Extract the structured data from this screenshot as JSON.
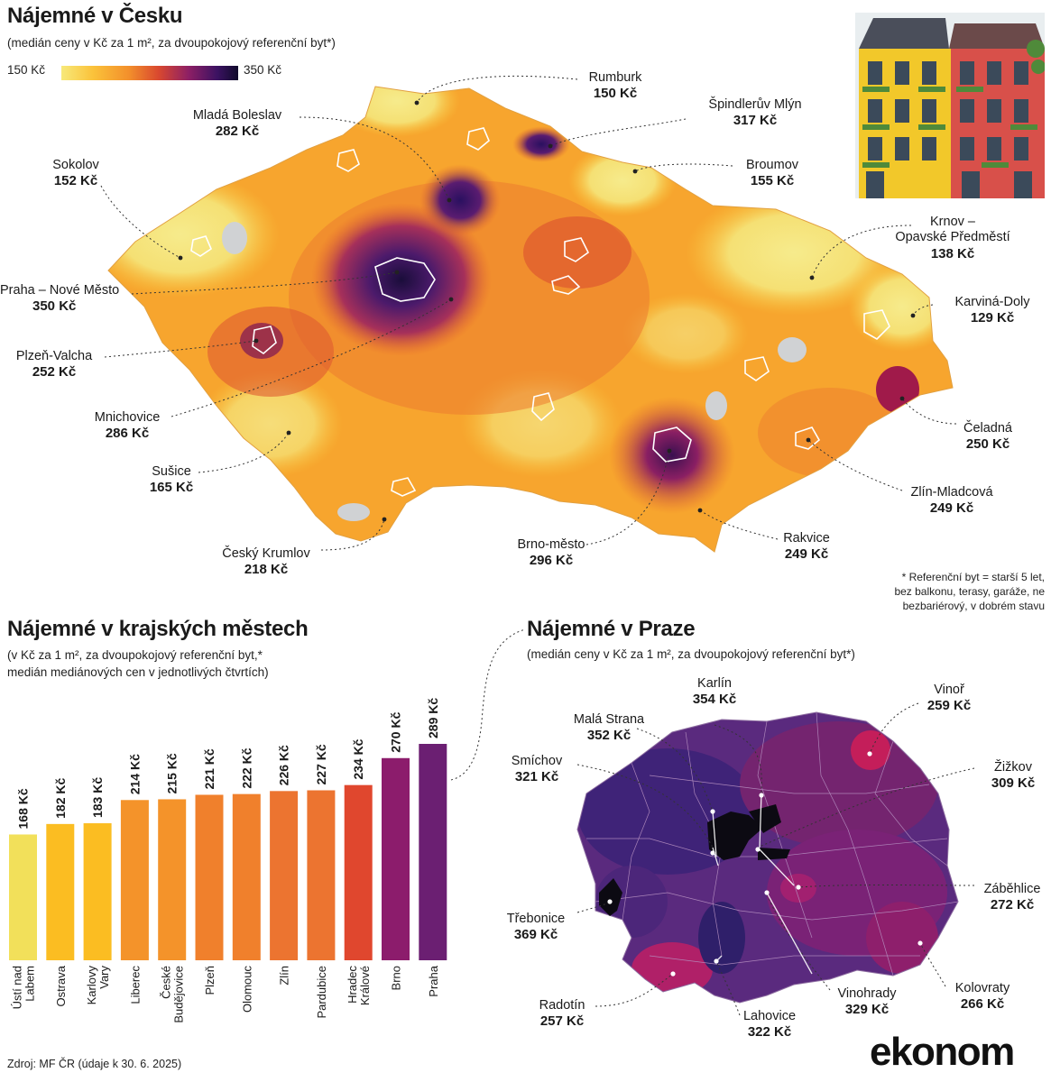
{
  "header": {
    "title": "Nájemné v Česku",
    "subtitle": "(medián ceny v Kč za 1 m², za dvoupokojový referenční byt*)",
    "scale_min": "150 Kč",
    "scale_max": "350 Kč"
  },
  "map_cz": {
    "labels": [
      {
        "name": "Rumburk",
        "value": "150 Kč"
      },
      {
        "name": "Mladá Boleslav",
        "value": "282 Kč"
      },
      {
        "name": "Špindlerův Mlýn",
        "value": "317 Kč"
      },
      {
        "name": "Sokolov",
        "value": "152 Kč"
      },
      {
        "name": "Broumov",
        "value": "155 Kč"
      },
      {
        "name": "Krnov –",
        "name2": "Opavské Předměstí",
        "value": "138 Kč"
      },
      {
        "name": "Praha – Nové Město",
        "value": "350 Kč"
      },
      {
        "name": "Karviná-Doly",
        "value": "129 Kč"
      },
      {
        "name": "Plzeň-Valcha",
        "value": "252 Kč"
      },
      {
        "name": "Mnichovice",
        "value": "286 Kč"
      },
      {
        "name": "Čeladná",
        "value": "250 Kč"
      },
      {
        "name": "Sušice",
        "value": "165 Kč"
      },
      {
        "name": "Zlín-Mladcová",
        "value": "249 Kč"
      },
      {
        "name": "Český Krumlov",
        "value": "218 Kč"
      },
      {
        "name": "Brno-město",
        "value": "296 Kč"
      },
      {
        "name": "Rakvice",
        "value": "249 Kč"
      }
    ],
    "footnote": [
      "* Referenční byt = starší 5 let,",
      "bez balkonu, terasy, garáže, ne",
      "bezbariérový, v dobrém stavu"
    ]
  },
  "bar_section": {
    "title": "Nájemné v krajských městech",
    "subtitle1": "(v Kč za 1 m², za dvoupokojový referenční byt,*",
    "subtitle2": "medián mediánových cen v jednotlivých čtvrtích)"
  },
  "chart_data": {
    "type": "bar",
    "title": "Nájemné v krajských městech",
    "categories": [
      "Ústí nad Labem",
      "Ostrava",
      "Karlovy Vary",
      "Liberec",
      "České Budějovice",
      "Plzeň",
      "Olomouc",
      "Zlín",
      "Pardubice",
      "Hradec Králové",
      "Brno",
      "Praha"
    ],
    "category_lines": [
      [
        "Ústí nad",
        "Labem"
      ],
      [
        "Ostrava"
      ],
      [
        "Karlovy",
        "Vary"
      ],
      [
        "Liberec"
      ],
      [
        "České",
        "Budějovice"
      ],
      [
        "Plzeň"
      ],
      [
        "Olomouc"
      ],
      [
        "Zlín"
      ],
      [
        "Pardubice"
      ],
      [
        "Hradec",
        "Králové"
      ],
      [
        "Brno"
      ],
      [
        "Praha"
      ]
    ],
    "values": [
      168,
      182,
      183,
      214,
      215,
      221,
      222,
      226,
      227,
      234,
      270,
      289
    ],
    "value_labels": [
      "168 Kč",
      "182 Kč",
      "183 Kč",
      "214 Kč",
      "215 Kč",
      "221 Kč",
      "222 Kč",
      "226 Kč",
      "227 Kč",
      "234 Kč",
      "270 Kč",
      "289 Kč"
    ],
    "colors": [
      "#f2e05a",
      "#fbbd22",
      "#fbbd22",
      "#f4932a",
      "#f4932a",
      "#f0802c",
      "#f0802c",
      "#ec7430",
      "#ec7430",
      "#e0472e",
      "#8c1c6c",
      "#6b1f72"
    ],
    "ylim": [
      0,
      300
    ],
    "xlabel": "",
    "ylabel": ""
  },
  "prague": {
    "title": "Nájemné v Praze",
    "subtitle": "(medián ceny v Kč za 1 m², za dvoupokojový referenční byt*)",
    "labels": [
      {
        "name": "Karlín",
        "value": "354 Kč"
      },
      {
        "name": "Vinoř",
        "value": "259 Kč"
      },
      {
        "name": "Malá Strana",
        "value": "352 Kč"
      },
      {
        "name": "Smíchov",
        "value": "321 Kč"
      },
      {
        "name": "Žižkov",
        "value": "309 Kč"
      },
      {
        "name": "Záběhlice",
        "value": "272 Kč"
      },
      {
        "name": "Třebonice",
        "value": "369 Kč"
      },
      {
        "name": "Kolovraty",
        "value": "266 Kč"
      },
      {
        "name": "Radotín",
        "value": "257 Kč"
      },
      {
        "name": "Vinohrady",
        "value": "329 Kč"
      },
      {
        "name": "Lahovice",
        "value": "322 Kč"
      }
    ]
  },
  "footer": {
    "source": "Zdroj: MF ČR (údaje k 30. 6. 2025)",
    "brand": "ekonom"
  }
}
